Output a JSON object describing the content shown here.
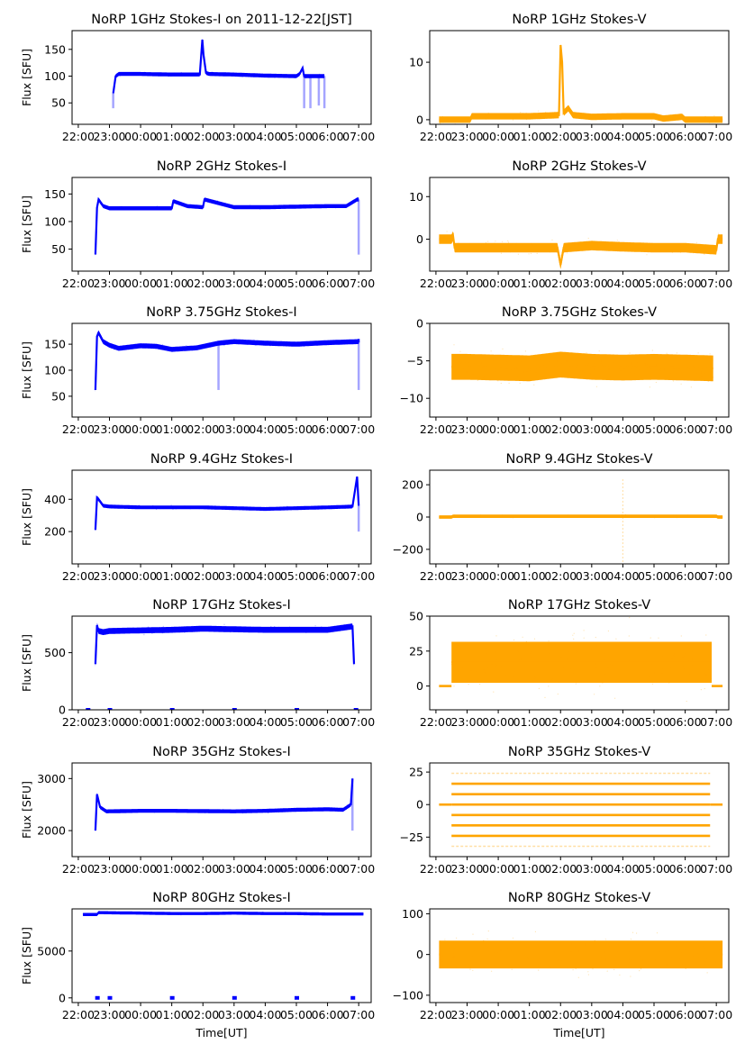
{
  "figure": {
    "xlabel": "Time[UT]",
    "x_tick_labels": [
      "22:00",
      "23:00",
      "00:00",
      "01:00",
      "02:00",
      "03:00",
      "04:00",
      "05:00",
      "06:00",
      "07:00"
    ],
    "colors": {
      "stokes_i": "#0000ff",
      "stokes_v": "#ffa500"
    }
  },
  "chart_data": [
    {
      "type": "scatter",
      "title": "NoRP 1GHz Stokes-I on 2011-12-22[JST]",
      "ylabel": "Flux [SFU]",
      "xlabel": "",
      "x_unit": "hours since 22:00 UT",
      "xlim": [
        -0.2,
        9.4
      ],
      "ylim": [
        10,
        185
      ],
      "yticks": [
        50,
        100,
        150
      ],
      "color": "#0000ff",
      "series": [
        {
          "name": "Stokes-I",
          "x": [
            1.12,
            1.2,
            1.3,
            2,
            3,
            3.9,
            3.98,
            4.02,
            4.1,
            4.2,
            5,
            6,
            7.0,
            7.1,
            7.2,
            7.25,
            7.45,
            7.9
          ],
          "y": [
            68,
            100,
            104,
            104,
            103,
            103,
            168,
            140,
            106,
            104,
            103,
            101,
            100,
            104,
            115,
            100,
            100,
            100
          ],
          "noise": 2,
          "start": 1.12,
          "end": 7.9,
          "dips": [
            [
              1.12,
              40
            ],
            [
              7.25,
              40
            ],
            [
              7.45,
              40
            ],
            [
              7.72,
              45
            ],
            [
              7.9,
              40
            ]
          ]
        }
      ]
    },
    {
      "type": "scatter",
      "title": "NoRP 1GHz Stokes-V",
      "ylabel": "",
      "xlabel": "",
      "xlim": [
        -0.2,
        9.4
      ],
      "ylim": [
        -0.8,
        15.5
      ],
      "yticks": [
        0,
        10
      ],
      "color": "#ffa500",
      "series": [
        {
          "name": "Stokes-V",
          "x": [
            0.1,
            1.1,
            1.15,
            2,
            3,
            3.95,
            4.0,
            4.05,
            4.1,
            4.25,
            4.4,
            5,
            6,
            7,
            7.3,
            7.9,
            8,
            9.2
          ],
          "y": [
            0,
            0,
            0.6,
            0.6,
            0.6,
            0.8,
            13,
            10,
            1.2,
            2,
            0.8,
            0.5,
            0.6,
            0.6,
            0.2,
            0.5,
            0,
            0
          ],
          "noise": 0.4,
          "start": 0.1,
          "end": 9.2
        }
      ]
    },
    {
      "type": "scatter",
      "title": "NoRP 2GHz Stokes-I",
      "ylabel": "Flux [SFU]",
      "xlabel": "",
      "xlim": [
        -0.2,
        9.4
      ],
      "ylim": [
        10,
        180
      ],
      "yticks": [
        50,
        100,
        150
      ],
      "color": "#0000ff",
      "series": [
        {
          "name": "Stokes-I",
          "x": [
            0.55,
            0.6,
            0.65,
            0.8,
            1,
            2,
            3,
            3.05,
            3.5,
            4,
            4.05,
            5,
            6,
            7,
            8,
            8.6,
            8.95,
            9.0
          ],
          "y": [
            40,
            125,
            140,
            128,
            124,
            124,
            124,
            137,
            128,
            126,
            140,
            126,
            126,
            127,
            128,
            128,
            140,
            140
          ],
          "noise": 2,
          "start": 0.55,
          "end": 9.0,
          "dips": [
            [
              9.0,
              40
            ]
          ]
        }
      ]
    },
    {
      "type": "scatter",
      "title": "NoRP 2GHz Stokes-V",
      "ylabel": "",
      "xlabel": "",
      "xlim": [
        -0.2,
        9.4
      ],
      "ylim": [
        -7.5,
        14.5
      ],
      "yticks": [
        0,
        10
      ],
      "color": "#ffa500",
      "series": [
        {
          "name": "Stokes-V",
          "x": [
            0.1,
            0.5,
            0.55,
            0.6,
            1,
            2,
            3,
            3.9,
            4.0,
            4.1,
            5,
            6,
            7,
            8,
            9,
            9.05,
            9.2
          ],
          "y": [
            0,
            0,
            0.8,
            -2,
            -2,
            -2,
            -2,
            -2,
            -6,
            -2,
            -1.5,
            -1.8,
            -2,
            -2,
            -2.5,
            0,
            0
          ],
          "noise": 0.9,
          "start": 0.1,
          "end": 9.2
        }
      ]
    },
    {
      "type": "scatter",
      "title": "NoRP 3.75GHz Stokes-I",
      "ylabel": "Flux [SFU]",
      "xlabel": "",
      "xlim": [
        -0.2,
        9.4
      ],
      "ylim": [
        10,
        190
      ],
      "yticks": [
        50,
        100,
        150
      ],
      "color": "#0000ff",
      "series": [
        {
          "name": "Stokes-I",
          "x": [
            0.55,
            0.6,
            0.65,
            0.8,
            1,
            1.3,
            2,
            2.5,
            3,
            3.8,
            4.5,
            5,
            6,
            7,
            8,
            9,
            9.0
          ],
          "y": [
            62,
            165,
            172,
            155,
            148,
            142,
            147,
            146,
            140,
            143,
            152,
            155,
            152,
            150,
            153,
            155,
            160
          ],
          "noise": 3,
          "start": 0.55,
          "end": 9.0,
          "dips": [
            [
              4.5,
              62
            ],
            [
              9.0,
              62
            ]
          ]
        }
      ]
    },
    {
      "type": "scatter",
      "title": "NoRP 3.75GHz Stokes-V",
      "ylabel": "",
      "xlabel": "",
      "xlim": [
        -0.2,
        9.4
      ],
      "ylim": [
        -12.5,
        0
      ],
      "yticks": [
        0,
        -5,
        -10
      ],
      "color": "#ffa500",
      "series": [
        {
          "name": "Stokes-V",
          "x": [
            0.5,
            1,
            2,
            3,
            4,
            5,
            6,
            7,
            8,
            8.9
          ],
          "y": [
            -5.8,
            -5.8,
            -5.9,
            -6,
            -5.5,
            -5.8,
            -5.9,
            -5.8,
            -5.9,
            -6
          ],
          "noise": 1.6,
          "start": 0.5,
          "end": 8.9
        }
      ]
    },
    {
      "type": "scatter",
      "title": "NoRP 9.4GHz Stokes-I",
      "ylabel": "Flux [SFU]",
      "xlabel": "",
      "xlim": [
        -0.2,
        9.4
      ],
      "ylim": [
        0,
        580
      ],
      "yticks": [
        200,
        400
      ],
      "color": "#0000ff",
      "series": [
        {
          "name": "Stokes-I",
          "x": [
            0.55,
            0.6,
            0.65,
            0.8,
            1,
            2,
            3,
            4,
            5,
            6,
            7,
            8,
            8.8,
            8.95,
            9.0
          ],
          "y": [
            210,
            410,
            400,
            360,
            355,
            350,
            350,
            350,
            345,
            340,
            345,
            350,
            355,
            540,
            360
          ],
          "noise": 6,
          "start": 0.55,
          "end": 9.0,
          "dips": [
            [
              9.0,
              200
            ]
          ]
        }
      ]
    },
    {
      "type": "scatter",
      "title": "NoRP 9.4GHz Stokes-V",
      "ylabel": "",
      "xlabel": "",
      "xlim": [
        -0.2,
        9.4
      ],
      "ylim": [
        -290,
        290
      ],
      "yticks": [
        200,
        0,
        -200
      ],
      "color": "#ffa500",
      "series": [
        {
          "name": "Stokes-V",
          "x": [
            0.1,
            0.5,
            0.55,
            9.0,
            9.05,
            9.2
          ],
          "y": [
            0,
            0,
            5,
            5,
            0,
            0
          ],
          "noise": 5,
          "start": 0.1,
          "end": 9.2,
          "spikes": [
            [
              6.0,
              240
            ],
            [
              6.0,
              -280
            ]
          ]
        }
      ]
    },
    {
      "type": "scatter",
      "title": "NoRP 17GHz Stokes-I",
      "ylabel": "Flux [SFU]",
      "xlabel": "",
      "xlim": [
        -0.2,
        9.4
      ],
      "ylim": [
        0,
        820
      ],
      "yticks": [
        0,
        500
      ],
      "color": "#0000ff",
      "series": [
        {
          "name": "Stokes-I",
          "x": [
            0.55,
            0.6,
            0.65,
            0.8,
            1,
            2,
            3,
            4,
            5,
            6,
            7,
            8,
            8.8,
            8.85
          ],
          "y": [
            400,
            740,
            690,
            680,
            690,
            695,
            700,
            710,
            705,
            700,
            700,
            700,
            730,
            400
          ],
          "noise": 18,
          "start": 0.55,
          "end": 8.85,
          "zero_marks": [
            0.3,
            1,
            3,
            5,
            7,
            8.9
          ]
        }
      ]
    },
    {
      "type": "scatter",
      "title": "NoRP 17GHz Stokes-V",
      "ylabel": "",
      "xlabel": "",
      "xlim": [
        -0.2,
        9.4
      ],
      "ylim": [
        -17,
        50
      ],
      "yticks": [
        0,
        25,
        50
      ],
      "color": "#ffa500",
      "series": [
        {
          "name": "Stokes-V",
          "x": [
            0.5,
            1,
            2,
            3,
            4,
            5,
            6,
            7,
            8,
            8.85
          ],
          "y": [
            17,
            17,
            17,
            17,
            17,
            17,
            17,
            17,
            17,
            17
          ],
          "noise": 14,
          "start": 0.5,
          "end": 8.85,
          "flat": [
            [
              0.1,
              0.5,
              0
            ],
            [
              8.85,
              9.2,
              0
            ]
          ]
        }
      ]
    },
    {
      "type": "scatter",
      "title": "NoRP 35GHz Stokes-I",
      "ylabel": "Flux [SFU]",
      "xlabel": "",
      "xlim": [
        -0.2,
        9.4
      ],
      "ylim": [
        1500,
        3300
      ],
      "yticks": [
        2000,
        3000
      ],
      "color": "#0000ff",
      "series": [
        {
          "name": "Stokes-I",
          "x": [
            0.55,
            0.6,
            0.7,
            0.9,
            2,
            3,
            4,
            5,
            6,
            7,
            8,
            8.5,
            8.75,
            8.8
          ],
          "y": [
            2000,
            2700,
            2450,
            2370,
            2380,
            2380,
            2375,
            2370,
            2380,
            2400,
            2410,
            2400,
            2500,
            3000
          ],
          "noise": 20,
          "start": 0.55,
          "end": 8.8,
          "dips": [
            [
              0.55,
              2000
            ],
            [
              8.8,
              2000
            ]
          ]
        }
      ]
    },
    {
      "type": "scatter",
      "title": "NoRP 35GHz Stokes-V",
      "ylabel": "",
      "xlabel": "",
      "xlim": [
        -0.2,
        9.4
      ],
      "ylim": [
        -40,
        32
      ],
      "yticks": [
        25,
        0,
        -25
      ],
      "color": "#ffa500",
      "series": [
        {
          "name": "Stokes-V",
          "levels": [
            24,
            16,
            8,
            0,
            -8,
            -16,
            -24,
            -32
          ],
          "start": 0.5,
          "end": 8.8,
          "flat": [
            [
              0.1,
              0.5,
              0
            ],
            [
              8.8,
              9.2,
              0
            ]
          ]
        }
      ]
    },
    {
      "type": "scatter",
      "title": "NoRP 80GHz Stokes-I",
      "ylabel": "Flux [SFU]",
      "xlabel": "Time[UT]",
      "xlim": [
        -0.2,
        9.4
      ],
      "ylim": [
        -500,
        9500
      ],
      "yticks": [
        0,
        5000
      ],
      "color": "#0000ff",
      "series": [
        {
          "name": "Stokes-I",
          "x": [
            0.15,
            0.6,
            0.65,
            2,
            3,
            4,
            5,
            6,
            7,
            8,
            8.8,
            9.15
          ],
          "y": [
            8900,
            8900,
            9100,
            9050,
            9000,
            9000,
            9050,
            9000,
            9000,
            8950,
            8950,
            8950
          ],
          "noise": 70,
          "start": 0.15,
          "end": 9.15,
          "zero_marks": [
            0.6,
            1,
            3,
            5,
            7,
            8.8
          ]
        }
      ]
    },
    {
      "type": "scatter",
      "title": "NoRP 80GHz Stokes-V",
      "ylabel": "",
      "xlabel": "Time[UT]",
      "xlim": [
        -0.2,
        9.4
      ],
      "ylim": [
        -118,
        112
      ],
      "yticks": [
        100,
        0,
        -100
      ],
      "color": "#ffa500",
      "series": [
        {
          "name": "Stokes-V",
          "x": [
            0.1,
            1,
            2,
            3,
            4,
            5,
            6,
            7,
            8,
            9.2
          ],
          "y": [
            0,
            0,
            0,
            0,
            0,
            0,
            0,
            0,
            0,
            0
          ],
          "noise": 32,
          "start": 0.1,
          "end": 9.2
        }
      ]
    }
  ]
}
